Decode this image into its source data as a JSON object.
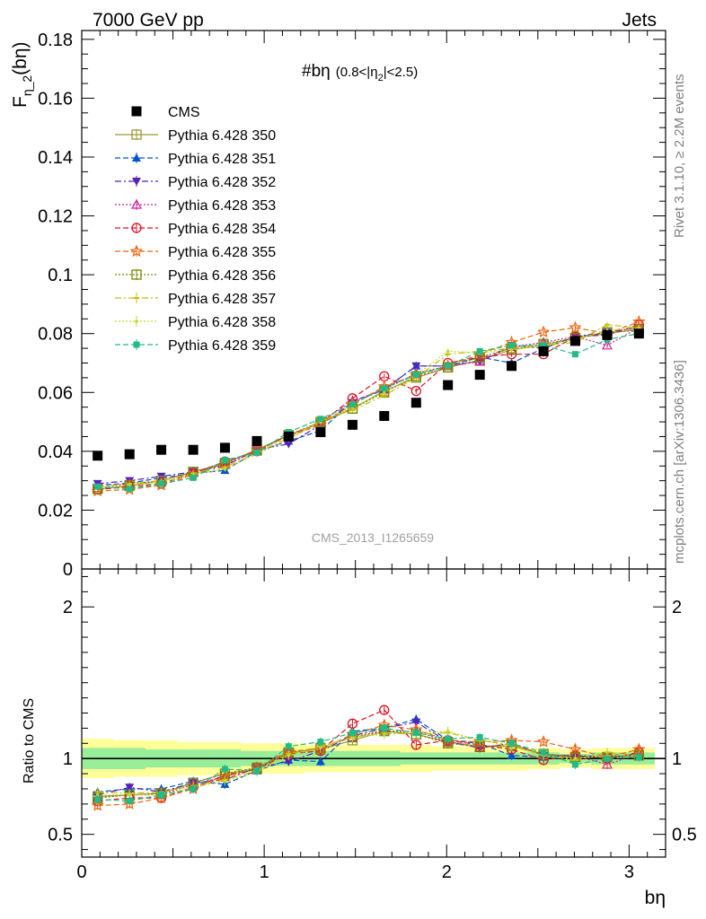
{
  "header": {
    "left": "7000 GeV pp",
    "right": "Jets"
  },
  "side": {
    "rivet": "Rivet 3.1.10, ≥ 2.2M events",
    "mcplots": "mcplots.cern.ch [arXiv:1306.3436]"
  },
  "analysis_id": "CMS_2013_I1265659",
  "panel_title": {
    "main": "#bη",
    "cut_prefix": "(0.8<|η",
    "cut_sub": "2",
    "cut_suffix": "|<2.5)"
  },
  "y_label": {
    "main": "F",
    "sub": "η_2",
    "suffix": "(bη)"
  },
  "ratio_label": "Ratio to CMS",
  "x_label": "bη",
  "chart_data": [
    {
      "type": "scatter",
      "panel": "main",
      "x": [
        0.087,
        0.262,
        0.436,
        0.611,
        0.785,
        0.96,
        1.134,
        1.309,
        1.484,
        1.658,
        1.833,
        2.007,
        2.182,
        2.356,
        2.531,
        2.705,
        2.88,
        3.054
      ],
      "xlim": [
        0,
        3.2
      ],
      "ylim": [
        0,
        0.183
      ],
      "x_ticks": [
        "0",
        "1",
        "2",
        "3"
      ],
      "y_ticks": [
        "0",
        "0.02",
        "0.04",
        "0.06",
        "0.08",
        "0.1",
        "0.12",
        "0.14",
        "0.16",
        "0.18"
      ],
      "legend_position": "top-left",
      "series": [
        {
          "name": "CMS",
          "color": "#000000",
          "marker": "square-filled",
          "line": "none",
          "values": [
            0.0385,
            0.039,
            0.0405,
            0.0405,
            0.0412,
            0.0435,
            0.045,
            0.0465,
            0.049,
            0.052,
            0.0565,
            0.0625,
            0.066,
            0.069,
            0.074,
            0.0775,
            0.0795,
            0.08
          ]
        },
        {
          "name": "Pythia 6.428 350",
          "color": "#999933",
          "marker": "square-open",
          "line": "solid",
          "values": [
            0.0272,
            0.0282,
            0.03,
            0.033,
            0.036,
            0.0405,
            0.0455,
            0.0495,
            0.0545,
            0.0605,
            0.065,
            0.0685,
            0.071,
            0.0745,
            0.076,
            0.0785,
            0.08,
            0.0815
          ]
        },
        {
          "name": "Pythia 6.428 351",
          "color": "#0055cc",
          "marker": "triangle-up-filled",
          "line": "dashed",
          "values": [
            0.0285,
            0.0292,
            0.031,
            0.0325,
            0.0335,
            0.04,
            0.0435,
            0.047,
            0.057,
            0.061,
            0.069,
            0.069,
            0.072,
            0.07,
            0.075,
            0.079,
            0.08,
            0.0825
          ]
        },
        {
          "name": "Pythia 6.428 352",
          "color": "#5522bb",
          "marker": "triangle-down-filled",
          "line": "dashdot",
          "values": [
            0.029,
            0.03,
            0.0315,
            0.033,
            0.035,
            0.0405,
            0.0425,
            0.049,
            0.0565,
            0.061,
            0.069,
            0.069,
            0.0705,
            0.076,
            0.075,
            0.079,
            0.0805,
            0.082
          ]
        },
        {
          "name": "Pythia 6.428 353",
          "color": "#cc2299",
          "marker": "triangle-up-open",
          "line": "dotted",
          "values": [
            0.0275,
            0.029,
            0.03,
            0.033,
            0.0355,
            0.04,
            0.0455,
            0.05,
            0.057,
            0.061,
            0.0665,
            0.069,
            0.0705,
            0.0755,
            0.077,
            0.079,
            0.076,
            0.082
          ]
        },
        {
          "name": "Pythia 6.428 354",
          "color": "#dd1122",
          "marker": "circle-open",
          "line": "dashed",
          "values": [
            0.027,
            0.028,
            0.029,
            0.0325,
            0.0365,
            0.04,
            0.0455,
            0.0495,
            0.058,
            0.0655,
            0.0605,
            0.07,
            0.072,
            0.073,
            0.073,
            0.079,
            0.0795,
            0.083
          ]
        },
        {
          "name": "Pythia 6.428 355",
          "color": "#ee6611",
          "marker": "star-open",
          "line": "dashed",
          "values": [
            0.0265,
            0.027,
            0.0285,
            0.032,
            0.036,
            0.0405,
            0.045,
            0.049,
            0.056,
            0.062,
            0.066,
            0.069,
            0.073,
            0.077,
            0.0805,
            0.082,
            0.08,
            0.084
          ]
        },
        {
          "name": "Pythia 6.428 356",
          "color": "#778800",
          "marker": "square-open",
          "line": "dotted",
          "values": [
            0.0272,
            0.0285,
            0.03,
            0.033,
            0.036,
            0.0405,
            0.0455,
            0.05,
            0.0545,
            0.06,
            0.0655,
            0.0685,
            0.072,
            0.075,
            0.0765,
            0.0785,
            0.0805,
            0.081
          ]
        },
        {
          "name": "Pythia 6.428 357",
          "color": "#ccbb00",
          "marker": "tick",
          "line": "dashdot",
          "values": [
            0.028,
            0.029,
            0.03,
            0.0325,
            0.0345,
            0.0395,
            0.0445,
            0.0505,
            0.054,
            0.059,
            0.065,
            0.073,
            0.074,
            0.075,
            0.076,
            0.077,
            0.083,
            0.082
          ]
        },
        {
          "name": "Pythia 6.428 358",
          "color": "#bbdd33",
          "marker": "dot",
          "line": "dotted",
          "values": [
            0.0275,
            0.0285,
            0.0295,
            0.032,
            0.034,
            0.039,
            0.044,
            0.05,
            0.055,
            0.06,
            0.066,
            0.074,
            0.0735,
            0.0745,
            0.076,
            0.078,
            0.081,
            0.082
          ]
        },
        {
          "name": "Pythia 6.428 359",
          "color": "#22bb88",
          "marker": "square-small-filled",
          "line": "dashed",
          "values": [
            0.028,
            0.0272,
            0.029,
            0.031,
            0.037,
            0.0395,
            0.0465,
            0.051,
            0.056,
            0.0615,
            0.066,
            0.069,
            0.074,
            0.076,
            0.076,
            0.073,
            0.078,
            0.08
          ]
        }
      ]
    },
    {
      "type": "scatter",
      "panel": "ratio",
      "ylabel": "Ratio to CMS",
      "xlabel": "bη",
      "ylim": [
        0.35,
        2.25
      ],
      "y_ticks": [
        "0.5",
        "1",
        "2"
      ],
      "reference_line": 1,
      "bands": [
        {
          "color": "#ffff99",
          "lower": [
            0.87,
            0.88,
            0.88,
            0.89,
            0.89,
            0.9,
            0.9,
            0.91,
            0.91,
            0.91,
            0.91,
            0.92,
            0.92,
            0.92,
            0.93,
            0.94,
            0.93,
            0.93
          ],
          "upper": [
            1.13,
            1.12,
            1.12,
            1.11,
            1.11,
            1.1,
            1.1,
            1.09,
            1.09,
            1.09,
            1.09,
            1.08,
            1.08,
            1.08,
            1.07,
            1.06,
            1.07,
            1.07
          ]
        },
        {
          "color": "#99ee99",
          "lower": [
            0.93,
            0.93,
            0.94,
            0.94,
            0.94,
            0.95,
            0.95,
            0.95,
            0.95,
            0.95,
            0.96,
            0.96,
            0.96,
            0.96,
            0.96,
            0.97,
            0.96,
            0.96
          ],
          "upper": [
            1.07,
            1.07,
            1.06,
            1.06,
            1.06,
            1.05,
            1.05,
            1.05,
            1.05,
            1.05,
            1.04,
            1.04,
            1.04,
            1.04,
            1.04,
            1.03,
            1.04,
            1.04
          ]
        }
      ],
      "series": [
        {
          "name": "Pythia 6.428 350",
          "values": [
            0.75,
            0.76,
            0.77,
            0.84,
            0.9,
            0.93,
            1.04,
            1.06,
            1.12,
            1.18,
            1.16,
            1.11,
            1.08,
            1.08,
            1.03,
            1.01,
            1.01,
            1.02
          ]
        },
        {
          "name": "Pythia 6.428 351",
          "values": [
            0.78,
            0.8,
            0.8,
            0.85,
            0.83,
            0.92,
            0.99,
            0.98,
            1.18,
            1.2,
            1.26,
            1.12,
            1.1,
            1.02,
            1.01,
            1.02,
            1.0,
            1.03
          ]
        },
        {
          "name": "Pythia 6.428 352",
          "values": [
            0.76,
            0.81,
            0.78,
            0.84,
            0.86,
            0.94,
            0.98,
            1.05,
            1.15,
            1.2,
            1.24,
            1.11,
            1.07,
            1.1,
            1.02,
            1.02,
            1.01,
            1.03
          ]
        },
        {
          "name": "Pythia 6.428 353",
          "values": [
            0.74,
            0.76,
            0.76,
            0.83,
            0.88,
            0.93,
            1.04,
            1.07,
            1.14,
            1.18,
            1.18,
            1.11,
            1.07,
            1.1,
            1.02,
            1.02,
            0.96,
            1.03
          ]
        },
        {
          "name": "Pythia 6.428 354",
          "values": [
            0.72,
            0.74,
            0.74,
            0.81,
            0.89,
            0.93,
            1.03,
            1.05,
            1.23,
            1.32,
            1.09,
            1.12,
            1.09,
            1.06,
            0.99,
            1.02,
            1.0,
            1.04
          ]
        },
        {
          "name": "Pythia 6.428 355",
          "values": [
            0.69,
            0.7,
            0.74,
            0.8,
            0.88,
            0.94,
            1.05,
            1.06,
            1.16,
            1.22,
            1.19,
            1.12,
            1.11,
            1.12,
            1.11,
            1.06,
            1.01,
            1.06
          ]
        },
        {
          "name": "Pythia 6.428 356",
          "values": [
            0.74,
            0.76,
            0.77,
            0.84,
            0.9,
            0.94,
            1.04,
            1.07,
            1.14,
            1.19,
            1.16,
            1.1,
            1.08,
            1.09,
            1.03,
            1.01,
            1.01,
            1.02
          ]
        },
        {
          "name": "Pythia 6.428 357",
          "values": [
            0.78,
            0.77,
            0.78,
            0.82,
            0.86,
            0.92,
            1.03,
            1.08,
            1.14,
            1.17,
            1.16,
            1.17,
            1.12,
            1.09,
            1.02,
            0.99,
            1.04,
            1.02
          ]
        },
        {
          "name": "Pythia 6.428 358",
          "values": [
            0.76,
            0.76,
            0.76,
            0.81,
            0.85,
            0.91,
            1.02,
            1.07,
            1.14,
            1.16,
            1.17,
            1.18,
            1.12,
            1.08,
            1.02,
            1.0,
            1.02,
            1.02
          ]
        },
        {
          "name": "Pythia 6.428 359",
          "values": [
            0.73,
            0.72,
            0.76,
            0.8,
            0.93,
            0.92,
            1.08,
            1.11,
            1.17,
            1.2,
            1.17,
            1.13,
            1.14,
            1.1,
            1.04,
            0.96,
            1.0,
            1.01
          ]
        }
      ]
    }
  ]
}
